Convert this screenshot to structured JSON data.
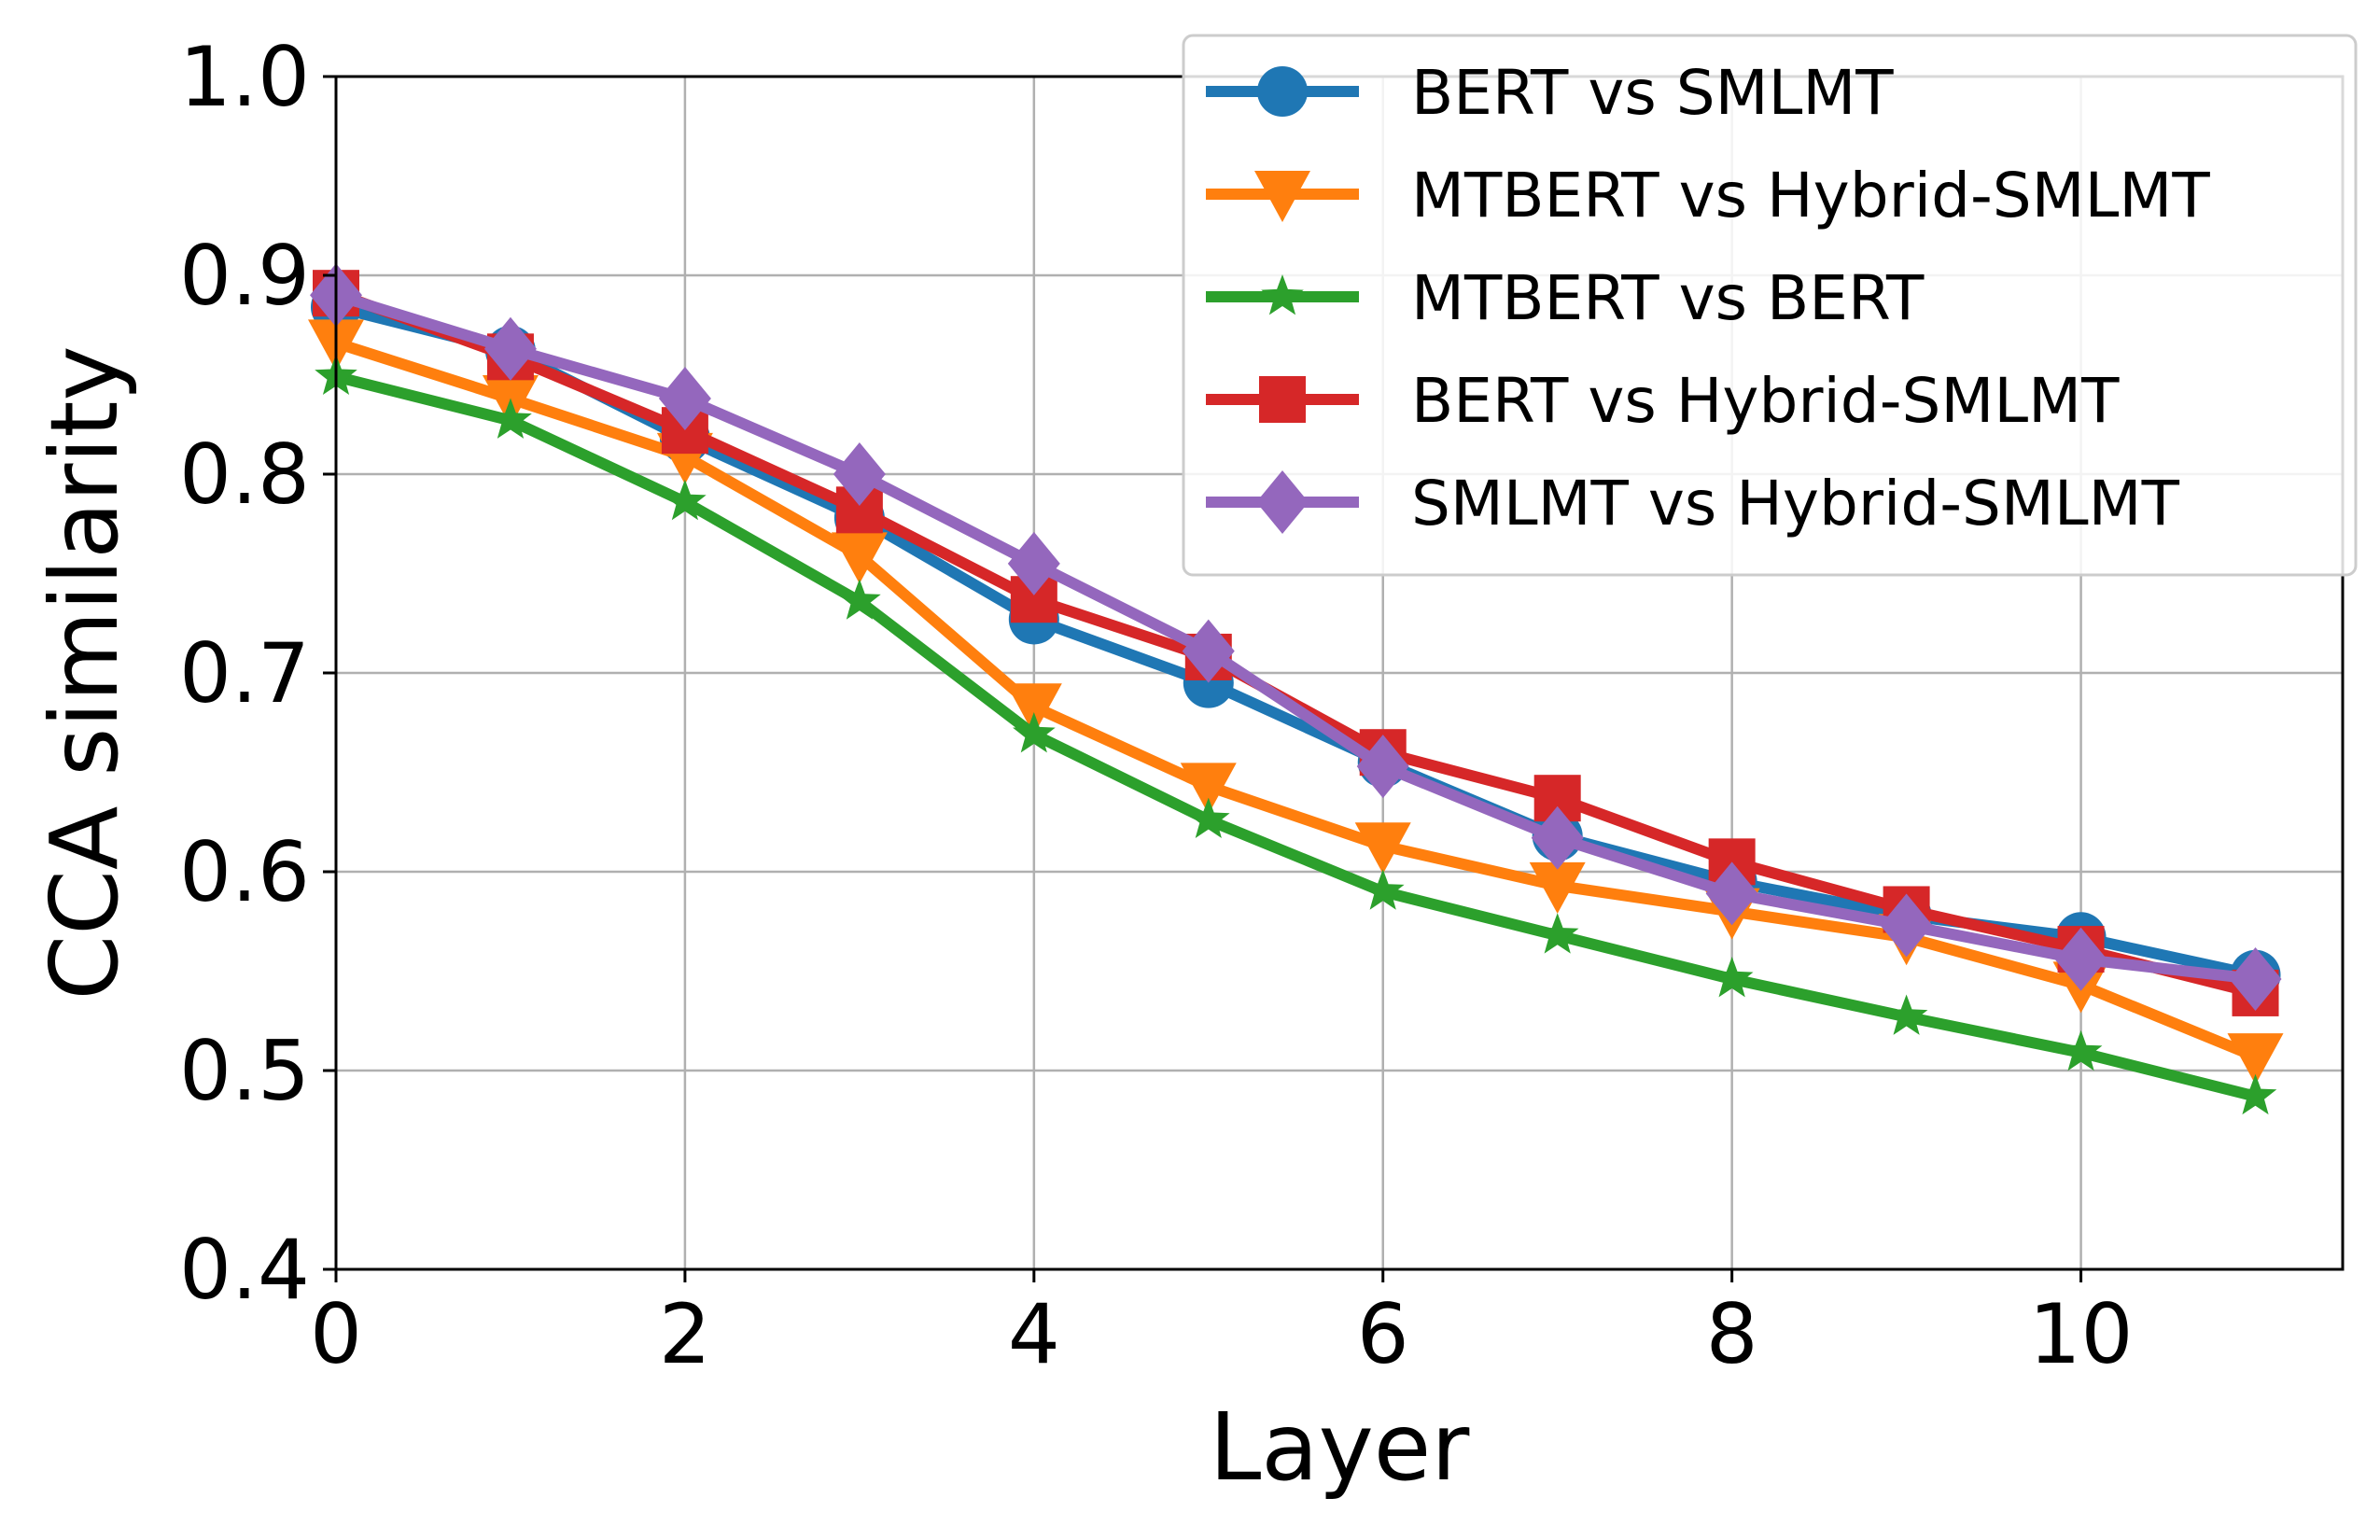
{
  "chart_data": {
    "type": "line",
    "title": "",
    "xlabel": "Layer",
    "ylabel": "CCA similarity",
    "xlim": [
      0,
      11.5
    ],
    "ylim": [
      0.4,
      1.0
    ],
    "xticks": [
      0,
      2,
      4,
      6,
      8,
      10
    ],
    "xtick_labels": [
      "0",
      "2",
      "4",
      "6",
      "8",
      "10"
    ],
    "yticks": [
      0.4,
      0.5,
      0.6,
      0.7,
      0.8,
      0.9,
      1.0
    ],
    "ytick_labels": [
      "0.4",
      "0.5",
      "0.6",
      "0.7",
      "0.8",
      "0.9",
      "1.0"
    ],
    "grid": true,
    "legend_position": "top-right",
    "x": [
      0,
      1,
      2,
      3,
      4,
      5,
      6,
      7,
      8,
      9,
      10,
      11
    ],
    "series": [
      {
        "name": "BERT vs SMLMT",
        "color": "#1f77b4",
        "marker": "circle",
        "values": [
          0.884,
          0.862,
          0.818,
          0.778,
          0.727,
          0.695,
          0.655,
          0.618,
          0.595,
          0.578,
          0.567,
          0.548
        ]
      },
      {
        "name": "MTBERT vs Hybrid-SMLMT",
        "color": "#ff7f0e",
        "marker": "triangle-down",
        "values": [
          0.866,
          0.838,
          0.809,
          0.759,
          0.683,
          0.643,
          0.613,
          0.593,
          0.58,
          0.567,
          0.543,
          0.507
        ]
      },
      {
        "name": "MTBERT vs BERT",
        "color": "#2ca02c",
        "marker": "star",
        "values": [
          0.849,
          0.827,
          0.786,
          0.736,
          0.669,
          0.626,
          0.59,
          0.568,
          0.546,
          0.527,
          0.509,
          0.487
        ]
      },
      {
        "name": "BERT vs Hybrid-SMLMT",
        "color": "#d62728",
        "marker": "square",
        "values": [
          0.891,
          0.859,
          0.822,
          0.782,
          0.737,
          0.708,
          0.66,
          0.637,
          0.605,
          0.581,
          0.561,
          0.539
        ]
      },
      {
        "name": "SMLMT vs Hybrid-SMLMT",
        "color": "#9467bd",
        "marker": "diamond",
        "values": [
          0.89,
          0.863,
          0.838,
          0.8,
          0.755,
          0.711,
          0.653,
          0.617,
          0.589,
          0.573,
          0.556,
          0.546
        ]
      }
    ]
  }
}
